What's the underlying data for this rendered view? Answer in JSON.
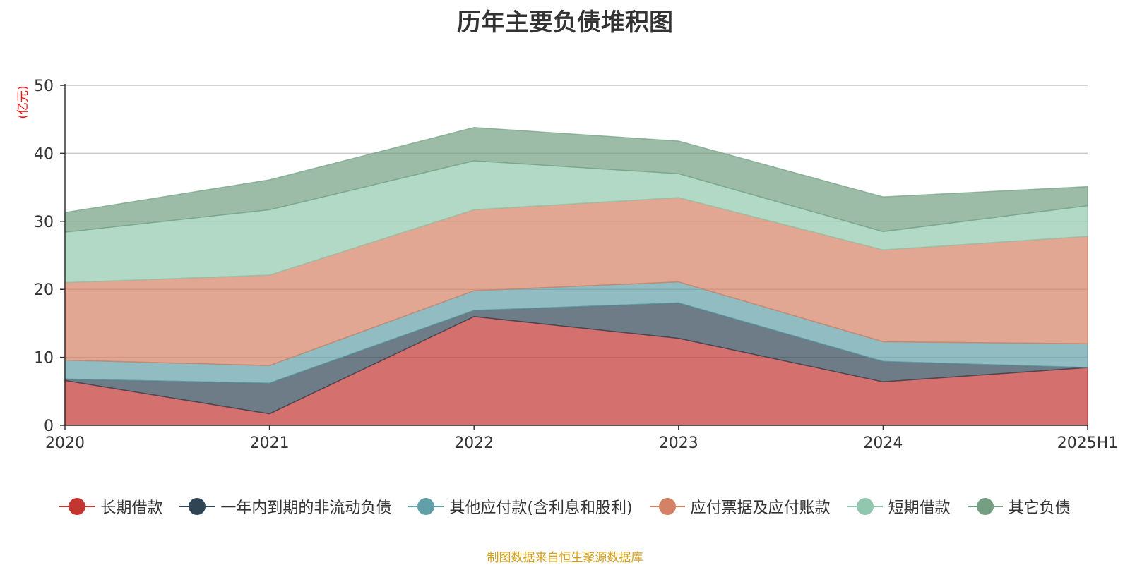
{
  "chart_data": {
    "type": "area",
    "stacked": true,
    "title": "历年主要负债堆积图",
    "unit_label": "(亿元)",
    "categories": [
      "2020",
      "2021",
      "2022",
      "2023",
      "2024",
      "2025H1"
    ],
    "ylim": [
      0,
      50
    ],
    "yticks": [
      0,
      10,
      20,
      30,
      40,
      50
    ],
    "grid": true,
    "legend_position": "bottom",
    "series": [
      {
        "name": "长期借款",
        "color": "#c23531",
        "values": [
          6.6,
          1.7,
          16.0,
          12.8,
          6.4,
          8.5
        ]
      },
      {
        "name": "一年内到期的非流动负债",
        "color": "#2f4554",
        "values": [
          0.2,
          4.5,
          0.9,
          5.2,
          3.0,
          0.0
        ]
      },
      {
        "name": "其他应付款(含利息和股利)",
        "color": "#61a0a8",
        "values": [
          2.8,
          2.6,
          2.9,
          3.1,
          2.9,
          3.5
        ]
      },
      {
        "name": "应付票据及应付账款",
        "color": "#d48265",
        "values": [
          11.4,
          13.3,
          11.9,
          12.4,
          13.5,
          15.8
        ]
      },
      {
        "name": "短期借款",
        "color": "#91c7ae",
        "values": [
          7.4,
          9.6,
          7.2,
          3.5,
          2.7,
          4.5
        ]
      },
      {
        "name": "其它负债",
        "color": "#749f83",
        "values": [
          2.9,
          4.4,
          4.9,
          4.8,
          5.1,
          2.8
        ]
      }
    ]
  },
  "footnote": "制图数据来自恒生聚源数据库"
}
